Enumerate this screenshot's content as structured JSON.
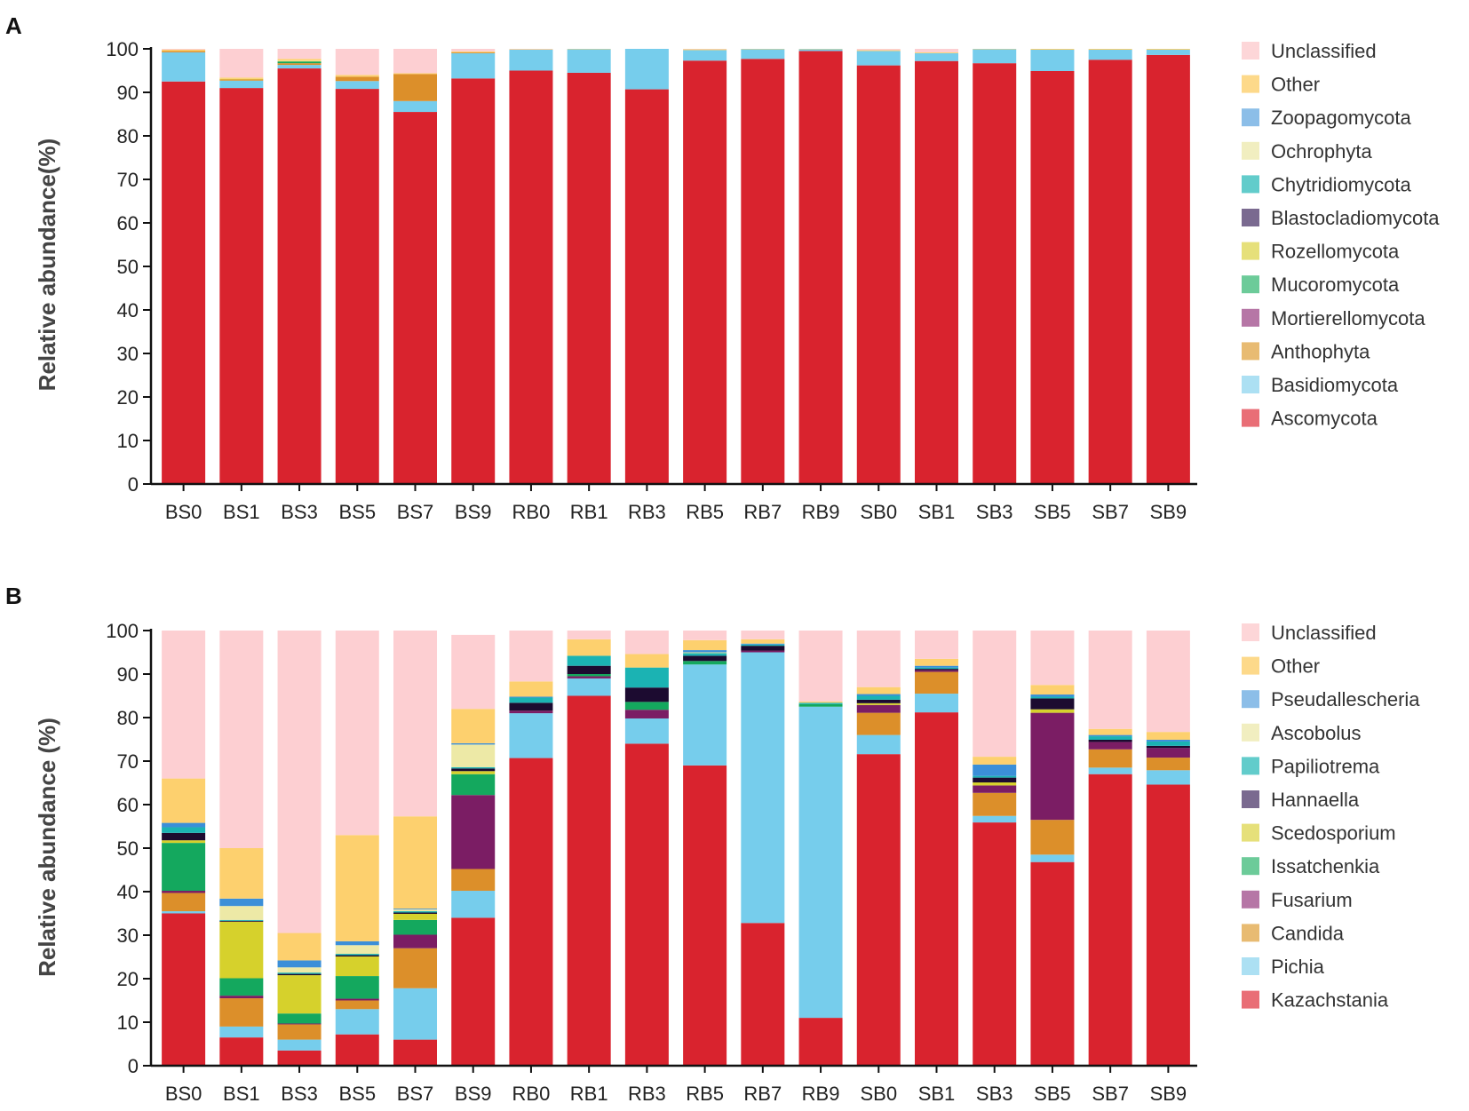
{
  "chart_data": [
    {
      "panel": "A",
      "type": "bar",
      "stacked": true,
      "ylabel": "Relative abundance(%)",
      "ylim": [
        0,
        100
      ],
      "yticks": [
        0,
        10,
        20,
        30,
        40,
        50,
        60,
        70,
        80,
        90,
        100
      ],
      "categories": [
        "BS0",
        "BS1",
        "BS3",
        "BS5",
        "BS7",
        "BS9",
        "RB0",
        "RB1",
        "RB3",
        "RB5",
        "RB7",
        "RB9",
        "SB0",
        "SB1",
        "SB3",
        "SB5",
        "SB7",
        "SB9"
      ],
      "series": [
        {
          "name": "Ascomycota",
          "color": "#d9232e",
          "values": [
            92.5,
            91.0,
            95.5,
            90.8,
            85.5,
            93.2,
            95.0,
            94.5,
            90.7,
            97.3,
            97.7,
            99.5,
            96.2,
            97.2,
            96.7,
            94.9,
            97.5,
            98.6
          ]
        },
        {
          "name": "Basidiomycota",
          "color": "#76cdec",
          "values": [
            6.7,
            1.7,
            0.8,
            1.8,
            2.5,
            5.8,
            4.8,
            5.4,
            9.3,
            2.4,
            2.2,
            0.4,
            3.3,
            1.8,
            3.2,
            4.9,
            2.3,
            1.2
          ]
        },
        {
          "name": "Anthophyta",
          "color": "#dc8f2a",
          "values": [
            0.3,
            0.3,
            0.4,
            1.0,
            6.2,
            0.2,
            0,
            0,
            0,
            0,
            0,
            0,
            0,
            0,
            0,
            0,
            0,
            0
          ]
        },
        {
          "name": "Mortierellomycota",
          "color": "#7b1d64",
          "values": [
            0,
            0,
            0,
            0,
            0,
            0,
            0,
            0,
            0,
            0,
            0,
            0,
            0,
            0,
            0,
            0,
            0,
            0
          ]
        },
        {
          "name": "Mucoromycota",
          "color": "#14a85e",
          "values": [
            0,
            0,
            0.4,
            0,
            0,
            0,
            0,
            0,
            0,
            0,
            0,
            0,
            0,
            0,
            0,
            0,
            0,
            0
          ]
        },
        {
          "name": "Rozellomycota",
          "color": "#d6d12c",
          "values": [
            0,
            0.1,
            0.1,
            0,
            0,
            0,
            0,
            0,
            0,
            0,
            0,
            0,
            0,
            0,
            0,
            0,
            0,
            0
          ]
        },
        {
          "name": "Blastocladiomycota",
          "color": "#1c0b30",
          "values": [
            0,
            0,
            0,
            0,
            0,
            0,
            0,
            0,
            0,
            0,
            0,
            0,
            0,
            0,
            0,
            0,
            0,
            0
          ]
        },
        {
          "name": "Chytridiomycota",
          "color": "#1bb3b3",
          "values": [
            0,
            0,
            0,
            0,
            0,
            0,
            0,
            0,
            0,
            0,
            0,
            0,
            0,
            0,
            0,
            0,
            0,
            0
          ]
        },
        {
          "name": "Ochrophyta",
          "color": "#ede9a6",
          "values": [
            0,
            0,
            0.1,
            0,
            0,
            0,
            0,
            0,
            0,
            0,
            0,
            0,
            0,
            0,
            0,
            0,
            0,
            0
          ]
        },
        {
          "name": "Zoopagomycota",
          "color": "#3b8fd8",
          "values": [
            0,
            0,
            0,
            0,
            0,
            0,
            0,
            0,
            0,
            0,
            0,
            0,
            0,
            0,
            0,
            0,
            0,
            0
          ]
        },
        {
          "name": "Other",
          "color": "#fdd06e",
          "values": [
            0.3,
            0.3,
            0.4,
            0.4,
            0.2,
            0.2,
            0.1,
            0.1,
            0,
            0.2,
            0.1,
            0.1,
            0.2,
            0.2,
            0.1,
            0.2,
            0.2,
            0.2
          ]
        },
        {
          "name": "Unclassified",
          "color": "#fdcfd2",
          "values": [
            0.2,
            6.6,
            2.3,
            6.0,
            5.6,
            0.6,
            0.1,
            0,
            0,
            0.1,
            0,
            0,
            0.3,
            0.8,
            0,
            0,
            0,
            0
          ]
        }
      ],
      "legend": {
        "position": "right",
        "items": [
          {
            "label": "Unclassified",
            "color": "#fdd6d8"
          },
          {
            "label": "Other",
            "color": "#fdd98a"
          },
          {
            "label": "Zoopagomycota",
            "color": "#8cbee8"
          },
          {
            "label": "Ochrophyta",
            "color": "#f1eec0"
          },
          {
            "label": "Chytridiomycota",
            "color": "#62cccb"
          },
          {
            "label": "Blastocladiomycota",
            "color": "#7a6a90"
          },
          {
            "label": "Rozellomycota",
            "color": "#e6e07a"
          },
          {
            "label": "Mucoromycota",
            "color": "#6ccb99"
          },
          {
            "label": "Mortierellomycota",
            "color": "#b676a6"
          },
          {
            "label": "Anthophyta",
            "color": "#e8bb72"
          },
          {
            "label": "Basidiomycota",
            "color": "#ace0f3"
          },
          {
            "label": "Ascomycota",
            "color": "#e96e76"
          }
        ]
      }
    },
    {
      "panel": "B",
      "type": "bar",
      "stacked": true,
      "ylabel": "Relative abundance (%)",
      "ylim": [
        0,
        100
      ],
      "yticks": [
        0,
        10,
        20,
        30,
        40,
        50,
        60,
        70,
        80,
        90,
        100
      ],
      "categories": [
        "BS0",
        "BS1",
        "BS3",
        "BS5",
        "BS7",
        "BS9",
        "RB0",
        "RB1",
        "RB3",
        "RB5",
        "RB7",
        "RB9",
        "SB0",
        "SB1",
        "SB3",
        "SB5",
        "SB7",
        "SB9"
      ],
      "series": [
        {
          "name": "Kazachstania",
          "color": "#d9232e",
          "values": [
            35.0,
            6.5,
            3.5,
            7.2,
            6.0,
            34.0,
            70.7,
            85.0,
            74.0,
            69.0,
            32.8,
            11.0,
            71.6,
            81.2,
            55.9,
            46.8,
            67.0,
            64.6
          ]
        },
        {
          "name": "Pichia",
          "color": "#76cdec",
          "values": [
            0.5,
            2.5,
            2.5,
            5.8,
            11.8,
            6.2,
            10.3,
            4.0,
            5.8,
            23.2,
            62.2,
            71.5,
            4.4,
            4.3,
            1.5,
            1.7,
            1.5,
            3.3
          ]
        },
        {
          "name": "Candida",
          "color": "#dc8f2a",
          "values": [
            4.2,
            6.5,
            3.5,
            2.0,
            9.2,
            5.0,
            0,
            0,
            0,
            0,
            0,
            0,
            5.1,
            5.0,
            5.3,
            8.0,
            4.2,
            2.9
          ]
        },
        {
          "name": "Fusarium",
          "color": "#7b1d64",
          "values": [
            0.5,
            0.6,
            0.2,
            0.4,
            3.1,
            17.0,
            0.6,
            0.5,
            2.0,
            0,
            0.4,
            0,
            1.8,
            0.4,
            1.7,
            24.6,
            1.7,
            2.2
          ]
        },
        {
          "name": "Issatchenkia",
          "color": "#14a85e",
          "values": [
            11.0,
            4.0,
            2.3,
            5.2,
            3.4,
            4.8,
            0,
            0.5,
            1.8,
            0.8,
            0,
            0.6,
            0,
            0,
            0,
            0,
            0,
            0
          ]
        },
        {
          "name": "Scedosporium",
          "color": "#d6d12c",
          "values": [
            0.6,
            13.0,
            8.8,
            4.5,
            1.4,
            0.7,
            0,
            0,
            0,
            0,
            0,
            0,
            0.4,
            0,
            0.7,
            0.8,
            0,
            0
          ]
        },
        {
          "name": "Hannaella",
          "color": "#1c0b30",
          "values": [
            1.7,
            0.2,
            0.3,
            0.3,
            0.3,
            0.6,
            1.8,
            1.9,
            3.3,
            1.2,
            1.1,
            0,
            0.8,
            0.3,
            1.1,
            2.5,
            0.5,
            0.5
          ]
        },
        {
          "name": "Papiliotrema",
          "color": "#1bb3b3",
          "values": [
            1.3,
            0.2,
            0.3,
            0.3,
            0.3,
            0.3,
            1.2,
            2.3,
            4.6,
            0.6,
            0.3,
            0.3,
            0.9,
            0.3,
            0.4,
            0.4,
            0.8,
            1.0
          ]
        },
        {
          "name": "Ascobolus",
          "color": "#ede9a6",
          "values": [
            0,
            3.2,
            1.2,
            2.0,
            0.4,
            5.2,
            0,
            0,
            0,
            0.2,
            0,
            0,
            0,
            0,
            0,
            0,
            0,
            0
          ]
        },
        {
          "name": "Pseudallescheria",
          "color": "#3b8fd8",
          "values": [
            1.0,
            1.7,
            1.6,
            0.9,
            0.2,
            0.3,
            0.2,
            0,
            0,
            0.5,
            0.2,
            0,
            0.4,
            0.4,
            2.6,
            0.5,
            0.3,
            0.4
          ]
        },
        {
          "name": "Other",
          "color": "#fdd06e",
          "values": [
            10.2,
            11.6,
            6.3,
            24.4,
            21.2,
            7.9,
            3.5,
            3.8,
            3.1,
            2.3,
            1.0,
            0.3,
            1.6,
            1.6,
            1.8,
            2.2,
            1.4,
            1.8
          ]
        },
        {
          "name": "Unclassified",
          "color": "#fdcfd2",
          "values": [
            34.0,
            50.0,
            69.5,
            47.0,
            42.7,
            17.0,
            11.7,
            2.0,
            5.4,
            2.2,
            2.0,
            16.3,
            13.0,
            6.5,
            29.0,
            12.5,
            22.6,
            23.3
          ]
        }
      ],
      "legend": {
        "position": "right",
        "items": [
          {
            "label": "Unclassified",
            "color": "#fdd6d8"
          },
          {
            "label": "Other",
            "color": "#fdd98a"
          },
          {
            "label": "Pseudallescheria",
            "color": "#8cbee8"
          },
          {
            "label": "Ascobolus",
            "color": "#f1eec0"
          },
          {
            "label": "Papiliotrema",
            "color": "#62cccb"
          },
          {
            "label": "Hannaella",
            "color": "#7a6a90"
          },
          {
            "label": "Scedosporium",
            "color": "#e6e07a"
          },
          {
            "label": "Issatchenkia",
            "color": "#6ccb99"
          },
          {
            "label": "Fusarium",
            "color": "#b676a6"
          },
          {
            "label": "Candida",
            "color": "#e8bb72"
          },
          {
            "label": "Pichia",
            "color": "#ace0f3"
          },
          {
            "label": "Kazachstania",
            "color": "#e96e76"
          }
        ]
      }
    }
  ]
}
